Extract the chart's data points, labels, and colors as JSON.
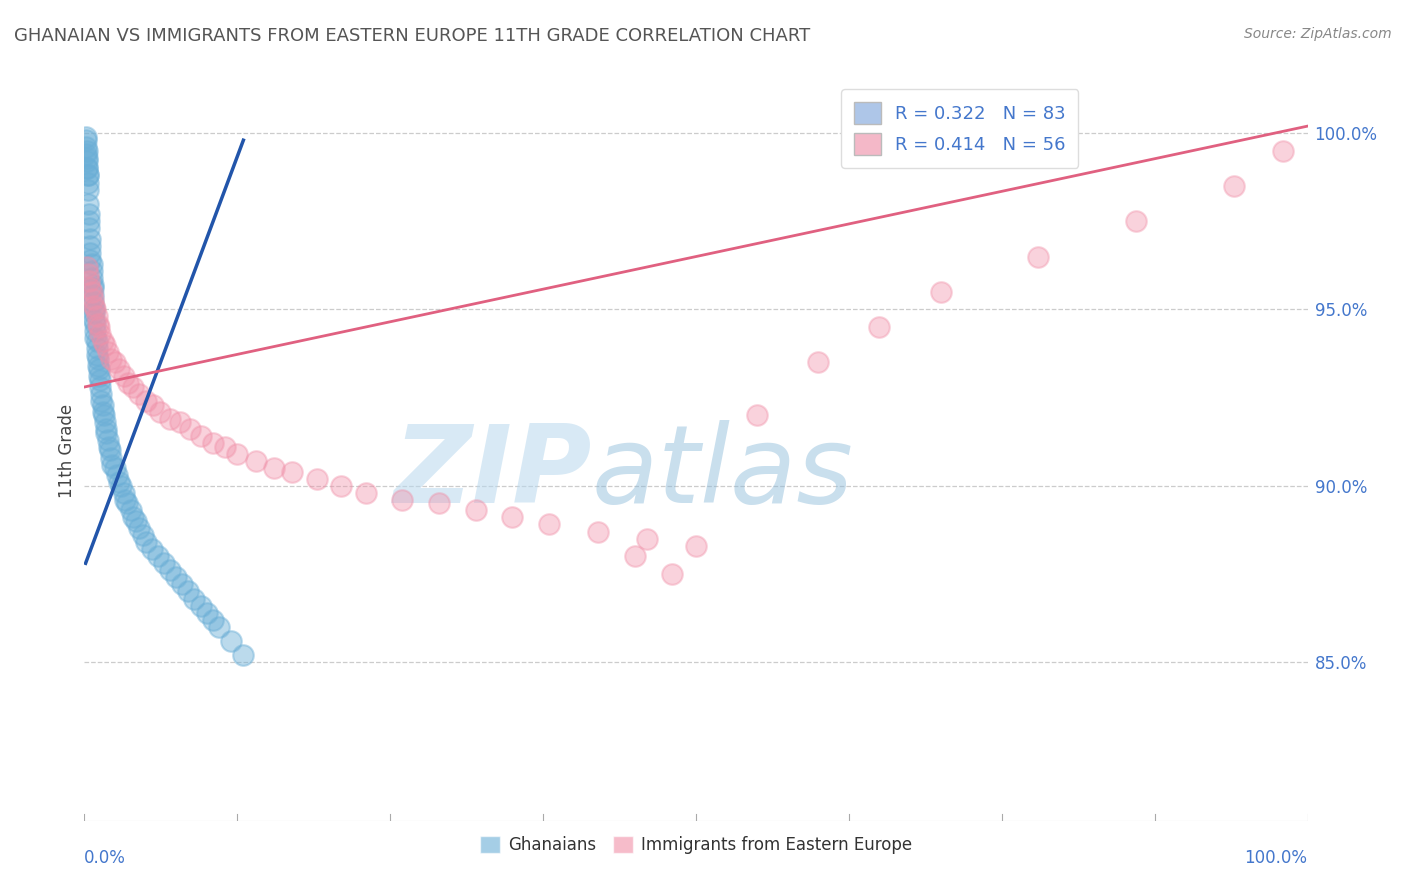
{
  "title": "GHANAIAN VS IMMIGRANTS FROM EASTERN EUROPE 11TH GRADE CORRELATION CHART",
  "source_text": "Source: ZipAtlas.com",
  "ylabel": "11th Grade",
  "ytick_labels": [
    "100.0%",
    "95.0%",
    "90.0%",
    "85.0%"
  ],
  "ytick_positions": [
    1.0,
    0.95,
    0.9,
    0.85
  ],
  "xlim": [
    0.0,
    1.0
  ],
  "ylim": [
    0.805,
    1.015
  ],
  "legend_entries": [
    {
      "label": "R = 0.322   N = 83",
      "color": "#aec6e8"
    },
    {
      "label": "R = 0.414   N = 56",
      "color": "#f4b8c8"
    }
  ],
  "legend_labels_bottom": [
    "Ghanaians",
    "Immigrants from Eastern Europe"
  ],
  "blue_color": "#6aaed6",
  "pink_color": "#f090a8",
  "blue_line_color": "#2255aa",
  "pink_line_color": "#e06080",
  "watermark_zip": "ZIP",
  "watermark_atlas": "atlas",
  "blue_scatter_x": [
    0.001,
    0.001,
    0.002,
    0.002,
    0.002,
    0.003,
    0.003,
    0.003,
    0.003,
    0.004,
    0.004,
    0.004,
    0.005,
    0.005,
    0.005,
    0.005,
    0.006,
    0.006,
    0.006,
    0.007,
    0.007,
    0.007,
    0.007,
    0.008,
    0.008,
    0.008,
    0.009,
    0.009,
    0.009,
    0.01,
    0.01,
    0.01,
    0.011,
    0.011,
    0.012,
    0.012,
    0.013,
    0.013,
    0.014,
    0.014,
    0.015,
    0.015,
    0.016,
    0.017,
    0.018,
    0.018,
    0.019,
    0.02,
    0.021,
    0.022,
    0.023,
    0.025,
    0.027,
    0.028,
    0.03,
    0.032,
    0.033,
    0.035,
    0.038,
    0.04,
    0.042,
    0.045,
    0.048,
    0.05,
    0.055,
    0.06,
    0.065,
    0.07,
    0.075,
    0.08,
    0.085,
    0.09,
    0.095,
    0.1,
    0.105,
    0.11,
    0.12,
    0.13,
    0.001,
    0.001,
    0.002,
    0.002,
    0.003
  ],
  "blue_scatter_y": [
    0.999,
    0.998,
    0.995,
    0.993,
    0.99,
    0.988,
    0.986,
    0.984,
    0.98,
    0.977,
    0.975,
    0.973,
    0.97,
    0.968,
    0.966,
    0.964,
    0.963,
    0.961,
    0.959,
    0.957,
    0.956,
    0.954,
    0.952,
    0.95,
    0.949,
    0.947,
    0.946,
    0.944,
    0.942,
    0.941,
    0.939,
    0.937,
    0.936,
    0.934,
    0.933,
    0.931,
    0.93,
    0.928,
    0.926,
    0.924,
    0.923,
    0.921,
    0.92,
    0.918,
    0.916,
    0.915,
    0.913,
    0.911,
    0.91,
    0.908,
    0.906,
    0.905,
    0.903,
    0.901,
    0.9,
    0.898,
    0.896,
    0.895,
    0.893,
    0.891,
    0.89,
    0.888,
    0.886,
    0.884,
    0.882,
    0.88,
    0.878,
    0.876,
    0.874,
    0.872,
    0.87,
    0.868,
    0.866,
    0.864,
    0.862,
    0.86,
    0.856,
    0.852,
    0.996,
    0.994,
    0.992,
    0.99,
    0.988
  ],
  "pink_scatter_x": [
    0.002,
    0.003,
    0.004,
    0.005,
    0.006,
    0.007,
    0.008,
    0.009,
    0.01,
    0.011,
    0.012,
    0.013,
    0.015,
    0.017,
    0.019,
    0.022,
    0.025,
    0.028,
    0.032,
    0.036,
    0.04,
    0.045,
    0.05,
    0.056,
    0.062,
    0.07,
    0.078,
    0.086,
    0.095,
    0.105,
    0.115,
    0.125,
    0.14,
    0.155,
    0.17,
    0.19,
    0.21,
    0.23,
    0.26,
    0.29,
    0.32,
    0.35,
    0.38,
    0.42,
    0.46,
    0.5,
    0.55,
    0.6,
    0.65,
    0.7,
    0.78,
    0.86,
    0.94,
    0.98,
    0.45,
    0.48
  ],
  "pink_scatter_y": [
    0.962,
    0.96,
    0.958,
    0.956,
    0.955,
    0.953,
    0.951,
    0.95,
    0.948,
    0.946,
    0.945,
    0.943,
    0.941,
    0.94,
    0.938,
    0.936,
    0.935,
    0.933,
    0.931,
    0.929,
    0.928,
    0.926,
    0.924,
    0.923,
    0.921,
    0.919,
    0.918,
    0.916,
    0.914,
    0.912,
    0.911,
    0.909,
    0.907,
    0.905,
    0.904,
    0.902,
    0.9,
    0.898,
    0.896,
    0.895,
    0.893,
    0.891,
    0.889,
    0.887,
    0.885,
    0.883,
    0.92,
    0.935,
    0.945,
    0.955,
    0.965,
    0.975,
    0.985,
    0.995,
    0.88,
    0.875
  ],
  "blue_line_x": [
    0.001,
    0.13
  ],
  "blue_line_y": [
    0.878,
    0.998
  ],
  "pink_line_x": [
    0.0,
    1.0
  ],
  "pink_line_y": [
    0.928,
    1.002
  ]
}
